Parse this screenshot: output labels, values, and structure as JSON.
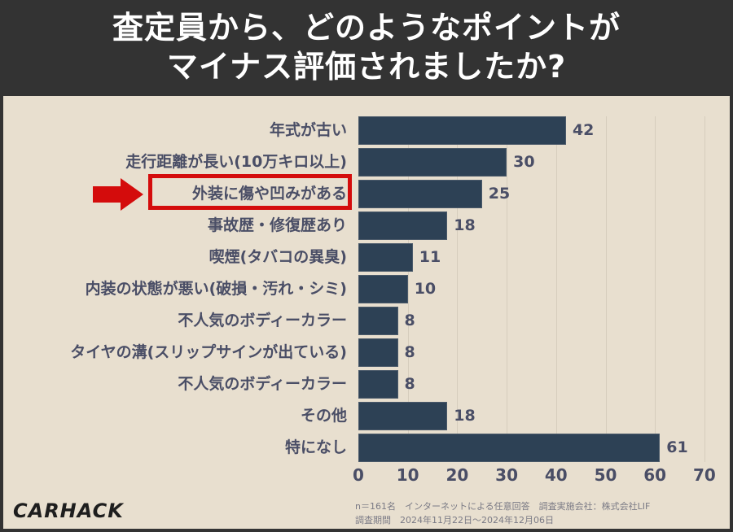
{
  "header": {
    "title_line1": "査定員から、どのようなポイントが",
    "title_line2": "マイナス評価されましたか?"
  },
  "chart_data": {
    "type": "bar",
    "orientation": "horizontal",
    "title": "査定員から、どのようなポイントがマイナス評価されましたか?",
    "categories": [
      "年式が古い",
      "走行距離が長い(10万キロ以上)",
      "外装に傷や凹みがある",
      "事故歴・修復歴あり",
      "喫煙(タバコの異臭)",
      "内装の状態が悪い(破損・汚れ・シミ)",
      "不人気のボディーカラー",
      "タイヤの溝(スリップサインが出ている)",
      "不人気のボディーカラー",
      "その他",
      "特になし"
    ],
    "values": [
      42,
      30,
      25,
      18,
      11,
      10,
      8,
      8,
      8,
      18,
      61
    ],
    "xlabel": "",
    "ylabel": "",
    "xlim": [
      0,
      70
    ],
    "xticks": [
      "0",
      "10",
      "20",
      "30",
      "40",
      "50",
      "60",
      "70"
    ],
    "grid": true,
    "bar_color": "#2d4155",
    "highlighted_category": "外装に傷や凹みがある",
    "highlight_color": "#d40c0c"
  },
  "footer": {
    "note1": "n＝161名　インターネットによる任意回答　調査実施会社：株式会社LIF",
    "note2": "調査期間　2024年11月22日～2024年12月06日",
    "logo": "CARHACK"
  }
}
